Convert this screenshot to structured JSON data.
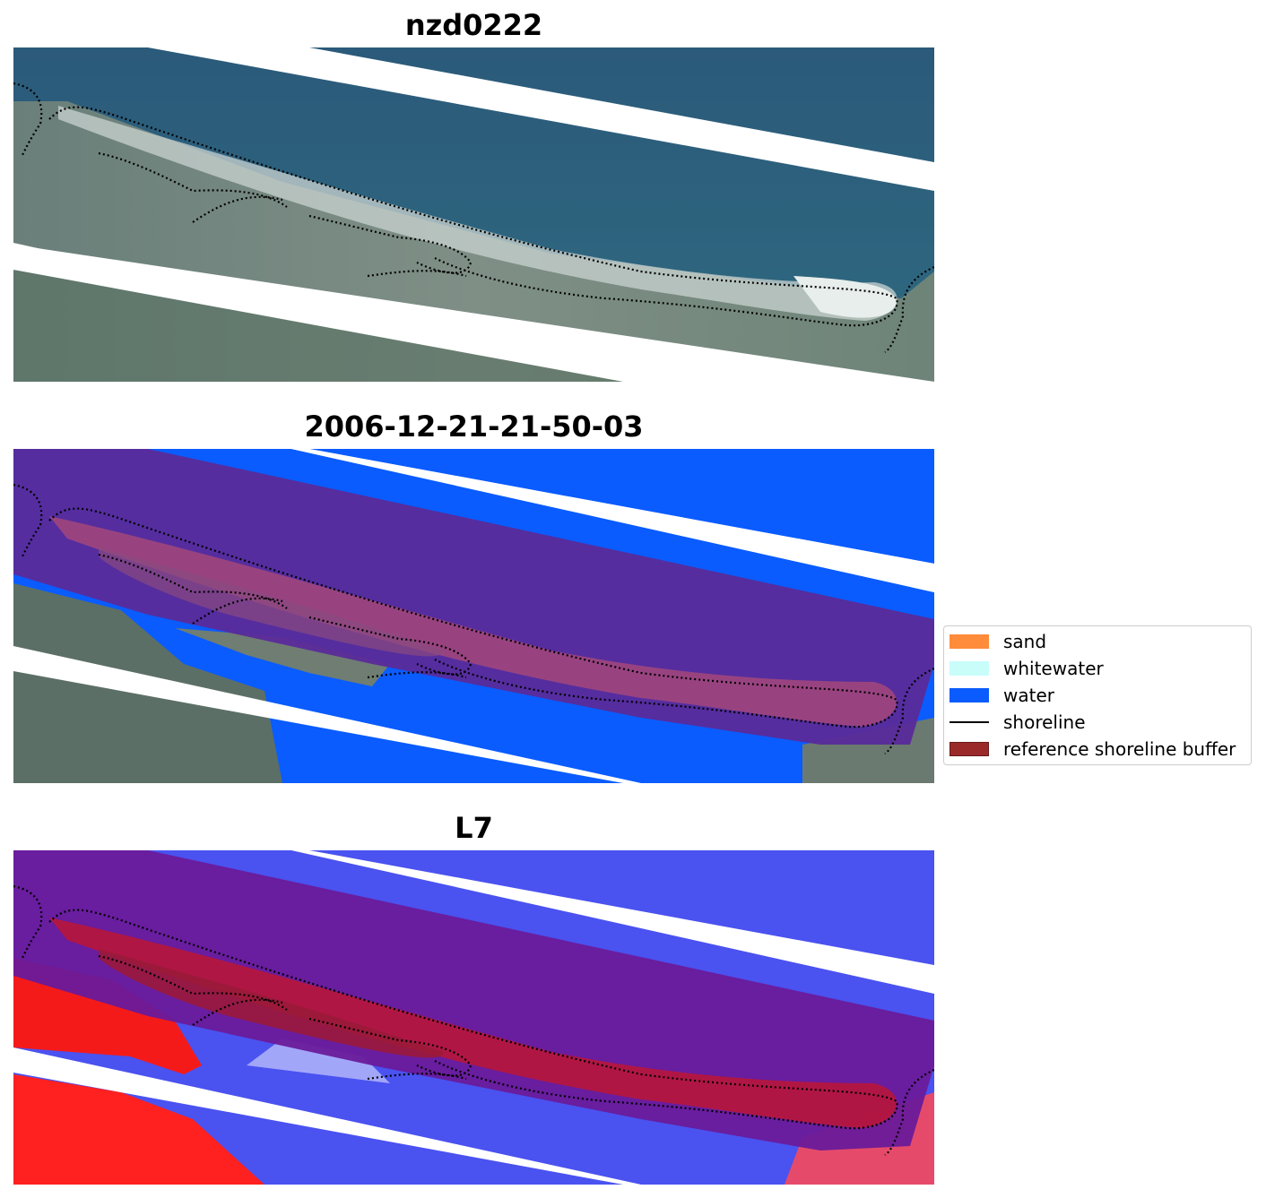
{
  "panels": [
    {
      "title": "nzd0222"
    },
    {
      "title": "2006-12-21-21-50-03"
    },
    {
      "title": "L7"
    }
  ],
  "legend": {
    "items": [
      {
        "label": "sand",
        "color": "#ff8c3a",
        "kind": "patch"
      },
      {
        "label": "whitewater",
        "color": "#c8fdfa",
        "kind": "patch"
      },
      {
        "label": "water",
        "color": "#0a5cff",
        "kind": "patch"
      },
      {
        "label": "shoreline",
        "color": "#000000",
        "kind": "line"
      },
      {
        "label": "reference shoreline buffer",
        "color": "#9a2a2a",
        "kind": "patch"
      }
    ]
  }
}
